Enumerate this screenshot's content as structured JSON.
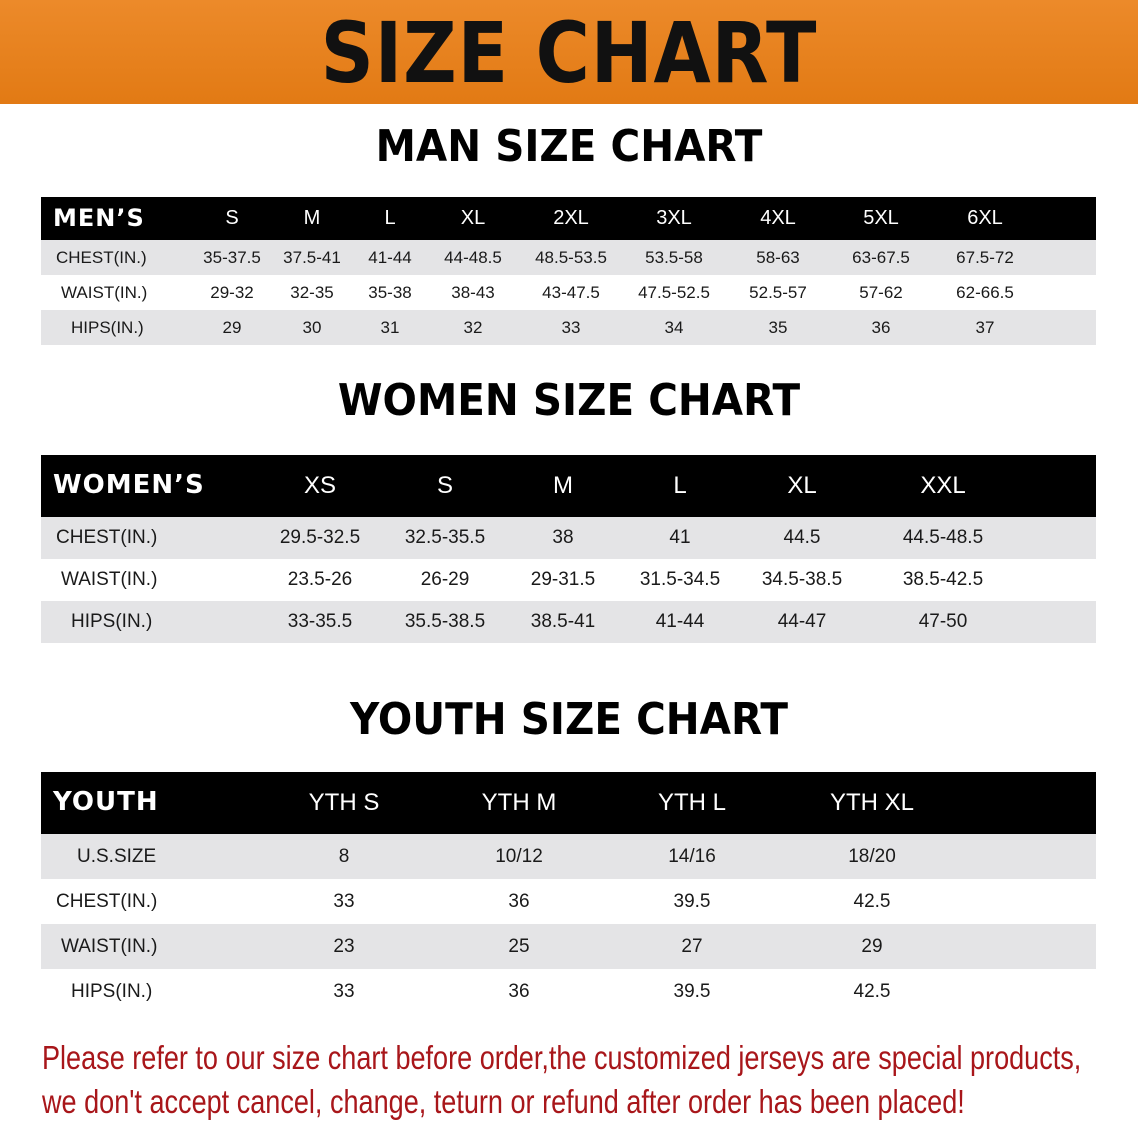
{
  "banner_title": "SIZE CHART",
  "men": {
    "title": "MAN SIZE CHART",
    "header_label": "MEN’S",
    "sizes": [
      "S",
      "M",
      "L",
      "XL",
      "2XL",
      "3XL",
      "4XL",
      "5XL",
      "6XL"
    ],
    "rows": [
      {
        "label": "CHEST(IN.)",
        "values": [
          "35-37.5",
          "37.5-41",
          "41-44",
          "44-48.5",
          "48.5-53.5",
          "53.5-58",
          "58-63",
          "63-67.5",
          "67.5-72"
        ]
      },
      {
        "label": "WAIST(IN.)",
        "values": [
          "29-32",
          "32-35",
          "35-38",
          "38-43",
          "43-47.5",
          "47.5-52.5",
          "52.5-57",
          "57-62",
          "62-66.5"
        ]
      },
      {
        "label": "HIPS(IN.)",
        "values": [
          "29",
          "30",
          "31",
          "32",
          "33",
          "34",
          "35",
          "36",
          "37"
        ]
      }
    ]
  },
  "women": {
    "title": "WOMEN SIZE CHART",
    "header_label": "WOMEN’S",
    "sizes": [
      "XS",
      "S",
      "M",
      "L",
      "XL",
      "XXL"
    ],
    "rows": [
      {
        "label": "CHEST(IN.)",
        "values": [
          "29.5-32.5",
          "32.5-35.5",
          "38",
          "41",
          "44.5",
          "44.5-48.5"
        ]
      },
      {
        "label": "WAIST(IN.)",
        "values": [
          "23.5-26",
          "26-29",
          "29-31.5",
          "31.5-34.5",
          "34.5-38.5",
          "38.5-42.5"
        ]
      },
      {
        "label": "HIPS(IN.)",
        "values": [
          "33-35.5",
          "35.5-38.5",
          "38.5-41",
          "41-44",
          "44-47",
          "47-50"
        ]
      }
    ]
  },
  "youth": {
    "title": "YOUTH SIZE CHART",
    "header_label": "YOUTH",
    "sizes": [
      "YTH S",
      "YTH M",
      "YTH L",
      "YTH XL"
    ],
    "rows": [
      {
        "label": "U.S.SIZE",
        "values": [
          "8",
          "10/12",
          "14/16",
          "18/20"
        ]
      },
      {
        "label": "CHEST(IN.)",
        "values": [
          "33",
          "36",
          "39.5",
          "42.5"
        ]
      },
      {
        "label": "WAIST(IN.)",
        "values": [
          "23",
          "25",
          "27",
          "29"
        ]
      },
      {
        "label": "HIPS(IN.)",
        "values": [
          "33",
          "36",
          "39.5",
          "42.5"
        ]
      }
    ]
  },
  "note": {
    "line1": "Please refer to our size chart before order,the customized jerseys are special products,",
    "line2": "we don't accept cancel, change, teturn or refund after order has been placed!",
    "color": "#a8161a"
  },
  "colors": {
    "banner": "#e8801f",
    "header_bg": "#000000",
    "row_alt": "#e4e4e6"
  }
}
